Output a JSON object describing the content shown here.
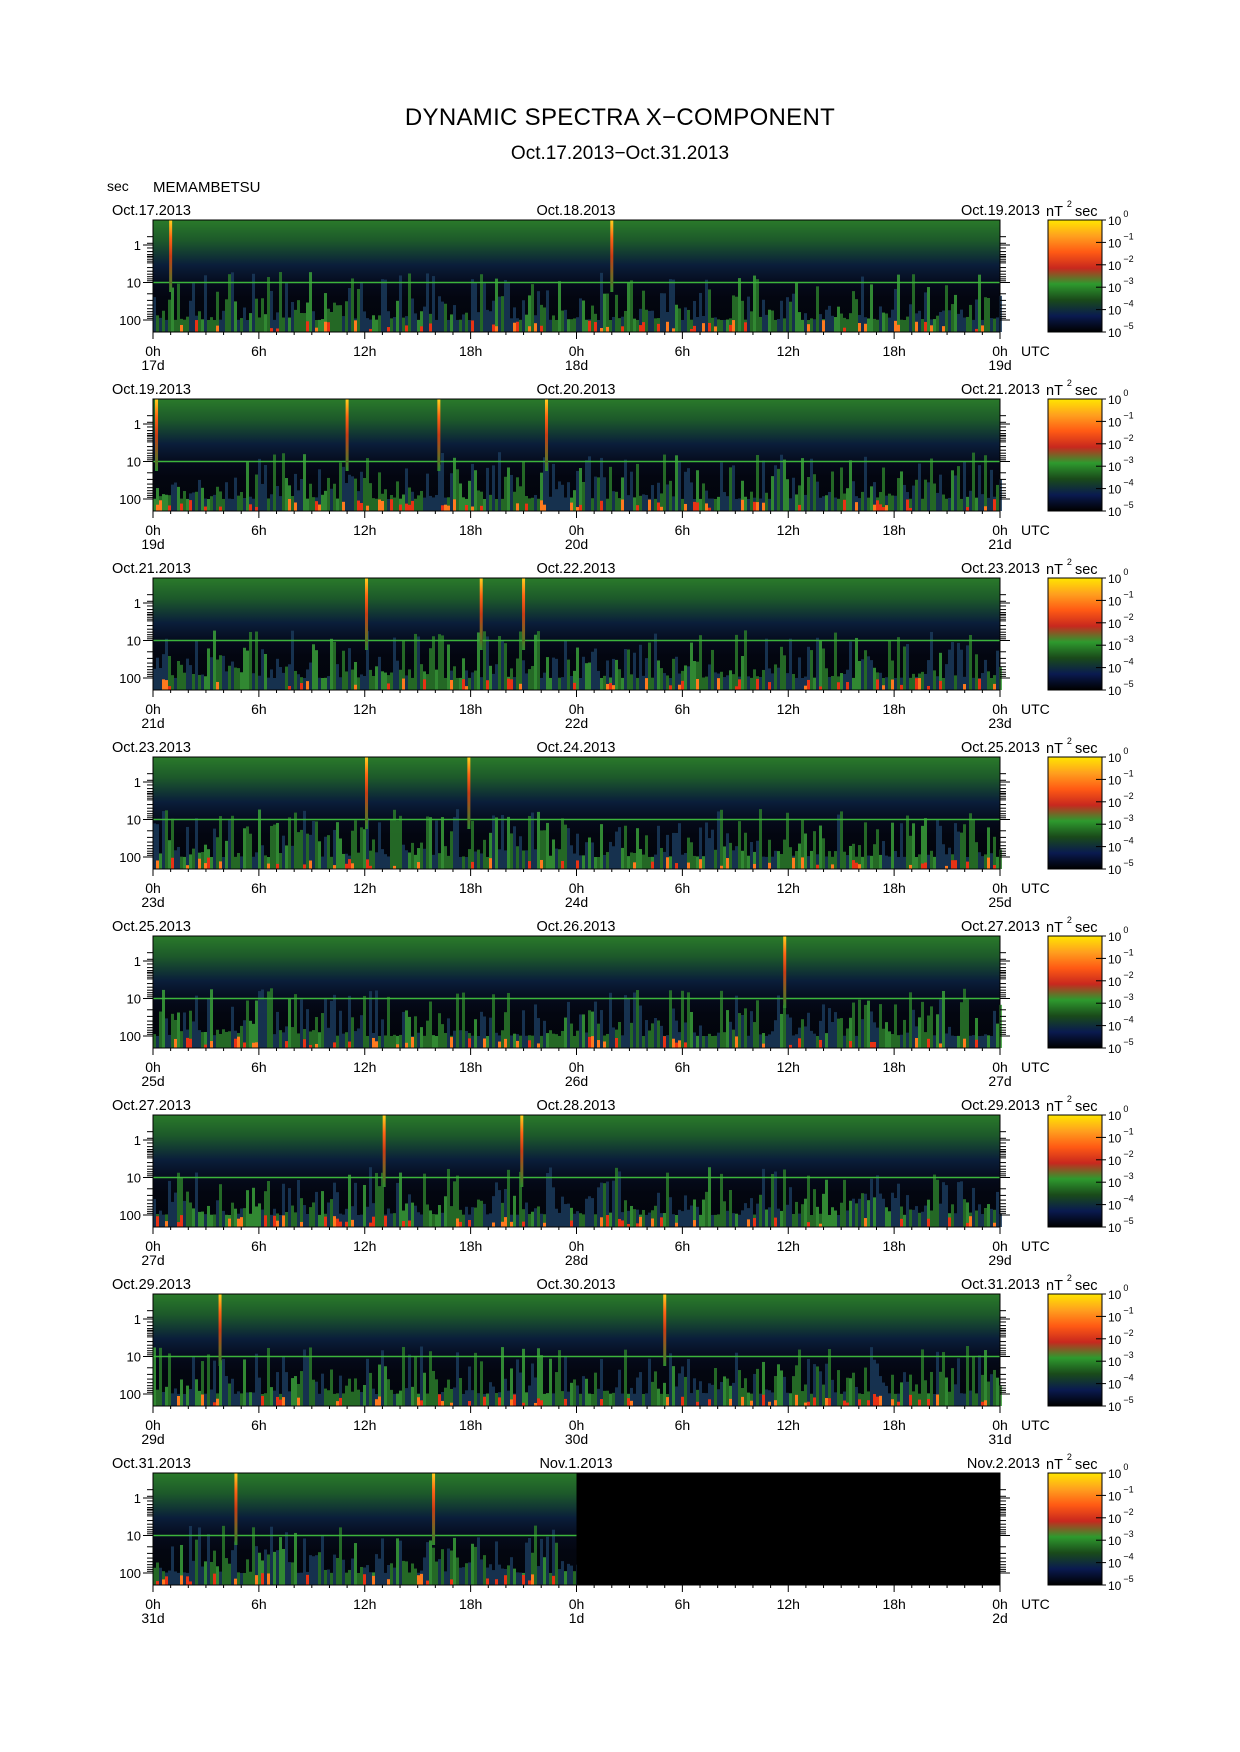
{
  "title": "DYNAMIC SPECTRA X−COMPONENT",
  "subtitle": "Oct.17.2013−Oct.31.2013",
  "y_unit": "sec",
  "station": "MEMAMBETSU",
  "colors": {
    "background": "#000000",
    "line_green": "#3cb43c",
    "colorbar": [
      "#000000",
      "#0a1a50",
      "#1a4a1a",
      "#2e9a2e",
      "#c8281e",
      "#ff5a14",
      "#ffa01e",
      "#ffe600"
    ]
  },
  "chart_data": [
    {
      "type": "heatmap",
      "date_left": "Oct.17.2013",
      "date_mid": "Oct.18.2013",
      "date_right": "Oct.19.2013",
      "x_ticks": [
        "0h",
        "6h",
        "12h",
        "18h",
        "0h",
        "6h",
        "12h",
        "18h",
        "0h"
      ],
      "day_labels": [
        "17d",
        "18d",
        "19d"
      ],
      "x_unit": "UTC",
      "y_ticks": [
        "1",
        "10",
        "100"
      ],
      "colorbar_unit": "nT  sec",
      "colorbar_ticks": [
        "0",
        "−1",
        "−2",
        "−3",
        "−4",
        "−5"
      ],
      "data_coverage_hours": 48,
      "spikes_hours": [
        1,
        26
      ]
    },
    {
      "type": "heatmap",
      "date_left": "Oct.19.2013",
      "date_mid": "Oct.20.2013",
      "date_right": "Oct.21.2013",
      "x_ticks": [
        "0h",
        "6h",
        "12h",
        "18h",
        "0h",
        "6h",
        "12h",
        "18h",
        "0h"
      ],
      "day_labels": [
        "19d",
        "20d",
        "21d"
      ],
      "x_unit": "UTC",
      "y_ticks": [
        "1",
        "10",
        "100"
      ],
      "colorbar_unit": "nT  sec",
      "colorbar_ticks": [
        "0",
        "−1",
        "−2",
        "−3",
        "−4",
        "−5"
      ],
      "data_coverage_hours": 48,
      "spikes_hours": [
        0.2,
        11,
        16.2,
        22.3
      ]
    },
    {
      "type": "heatmap",
      "date_left": "Oct.21.2013",
      "date_mid": "Oct.22.2013",
      "date_right": "Oct.23.2013",
      "x_ticks": [
        "0h",
        "6h",
        "12h",
        "18h",
        "0h",
        "6h",
        "12h",
        "18h",
        "0h"
      ],
      "day_labels": [
        "21d",
        "22d",
        "23d"
      ],
      "x_unit": "UTC",
      "y_ticks": [
        "1",
        "10",
        "100"
      ],
      "colorbar_unit": "nT  sec",
      "colorbar_ticks": [
        "0",
        "−1",
        "−2",
        "−3",
        "−4",
        "−5"
      ],
      "data_coverage_hours": 48,
      "spikes_hours": [
        12.1,
        18.6,
        21
      ]
    },
    {
      "type": "heatmap",
      "date_left": "Oct.23.2013",
      "date_mid": "Oct.24.2013",
      "date_right": "Oct.25.2013",
      "x_ticks": [
        "0h",
        "6h",
        "12h",
        "18h",
        "0h",
        "6h",
        "12h",
        "18h",
        "0h"
      ],
      "day_labels": [
        "23d",
        "24d",
        "25d"
      ],
      "x_unit": "UTC",
      "y_ticks": [
        "1",
        "10",
        "100"
      ],
      "colorbar_unit": "nT  sec",
      "colorbar_ticks": [
        "0",
        "−1",
        "−2",
        "−3",
        "−4",
        "−5"
      ],
      "data_coverage_hours": 48,
      "spikes_hours": [
        12.1,
        17.9
      ]
    },
    {
      "type": "heatmap",
      "date_left": "Oct.25.2013",
      "date_mid": "Oct.26.2013",
      "date_right": "Oct.27.2013",
      "x_ticks": [
        "0h",
        "6h",
        "12h",
        "18h",
        "0h",
        "6h",
        "12h",
        "18h",
        "0h"
      ],
      "day_labels": [
        "25d",
        "26d",
        "27d"
      ],
      "x_unit": "UTC",
      "y_ticks": [
        "1",
        "10",
        "100"
      ],
      "colorbar_unit": "nT  sec",
      "colorbar_ticks": [
        "0",
        "−1",
        "−2",
        "−3",
        "−4",
        "−5"
      ],
      "data_coverage_hours": 48,
      "spikes_hours": [
        35.8
      ]
    },
    {
      "type": "heatmap",
      "date_left": "Oct.27.2013",
      "date_mid": "Oct.28.2013",
      "date_right": "Oct.29.2013",
      "x_ticks": [
        "0h",
        "6h",
        "12h",
        "18h",
        "0h",
        "6h",
        "12h",
        "18h",
        "0h"
      ],
      "day_labels": [
        "27d",
        "28d",
        "29d"
      ],
      "x_unit": "UTC",
      "y_ticks": [
        "1",
        "10",
        "100"
      ],
      "colorbar_unit": "nT  sec",
      "colorbar_ticks": [
        "0",
        "−1",
        "−2",
        "−3",
        "−4",
        "−5"
      ],
      "data_coverage_hours": 48,
      "spikes_hours": [
        13.1,
        20.9
      ]
    },
    {
      "type": "heatmap",
      "date_left": "Oct.29.2013",
      "date_mid": "Oct.30.2013",
      "date_right": "Oct.31.2013",
      "x_ticks": [
        "0h",
        "6h",
        "12h",
        "18h",
        "0h",
        "6h",
        "12h",
        "18h",
        "0h"
      ],
      "day_labels": [
        "29d",
        "30d",
        "31d"
      ],
      "x_unit": "UTC",
      "y_ticks": [
        "1",
        "10",
        "100"
      ],
      "colorbar_unit": "nT  sec",
      "colorbar_ticks": [
        "0",
        "−1",
        "−2",
        "−3",
        "−4",
        "−5"
      ],
      "data_coverage_hours": 48,
      "spikes_hours": [
        3.8,
        29
      ]
    },
    {
      "type": "heatmap",
      "date_left": "Oct.31.2013",
      "date_mid": "Nov.1.2013",
      "date_right": "Nov.2.2013",
      "x_ticks": [
        "0h",
        "6h",
        "12h",
        "18h",
        "0h",
        "6h",
        "12h",
        "18h",
        "0h"
      ],
      "day_labels": [
        "31d",
        "1d",
        "2d"
      ],
      "x_unit": "UTC",
      "y_ticks": [
        "1",
        "10",
        "100"
      ],
      "colorbar_unit": "nT  sec",
      "colorbar_ticks": [
        "0",
        "−1",
        "−2",
        "−3",
        "−4",
        "−5"
      ],
      "data_coverage_hours": 24,
      "spikes_hours": [
        4.7,
        15.9
      ]
    }
  ]
}
